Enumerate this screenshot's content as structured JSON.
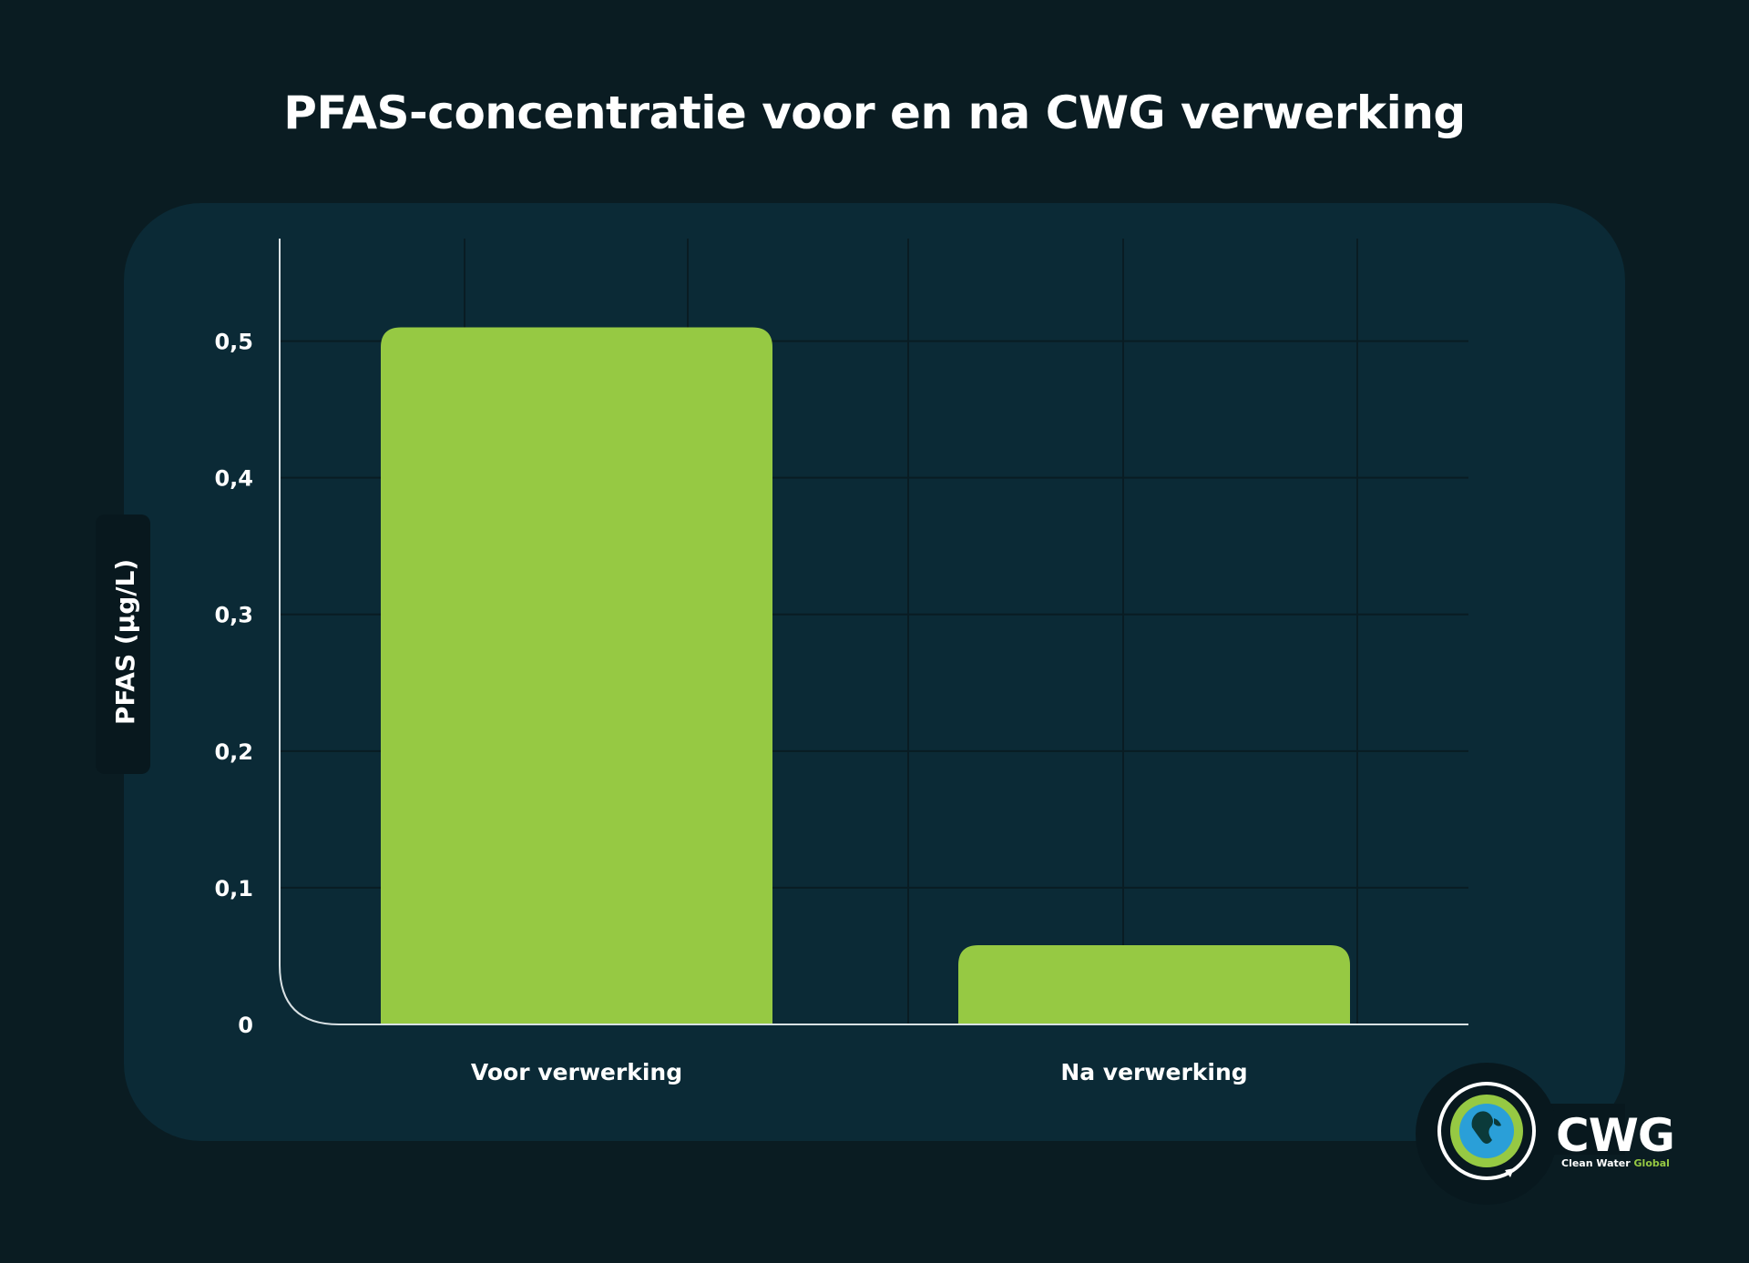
{
  "colors": {
    "background": "#0a1c22",
    "panel": "#0b2a36",
    "bar": "#96c943",
    "grid": "#091c23",
    "axis": "#d9e1e4",
    "text": "#ffffff"
  },
  "chart_data": {
    "type": "bar",
    "title": "PFAS-concentratie voor en na CWG verwerking",
    "xlabel": "",
    "ylabel": "PFAS (μg/L)",
    "categories": [
      "Voor verwerking",
      "Na verwerking"
    ],
    "values": [
      0.51,
      0.058
    ],
    "yticks": [
      "0",
      "0,1",
      "0,2",
      "0,3",
      "0,4",
      "0,5"
    ],
    "ytick_values": [
      0,
      0.1,
      0.2,
      0.3,
      0.4,
      0.5
    ],
    "ylim": [
      0,
      0.575
    ],
    "grid": true,
    "legend": "none"
  },
  "logo": {
    "wordmark": "CWG",
    "tagline_white": "Clean Water ",
    "tagline_green": "Global",
    "icon": "globe-recycle-icon"
  }
}
